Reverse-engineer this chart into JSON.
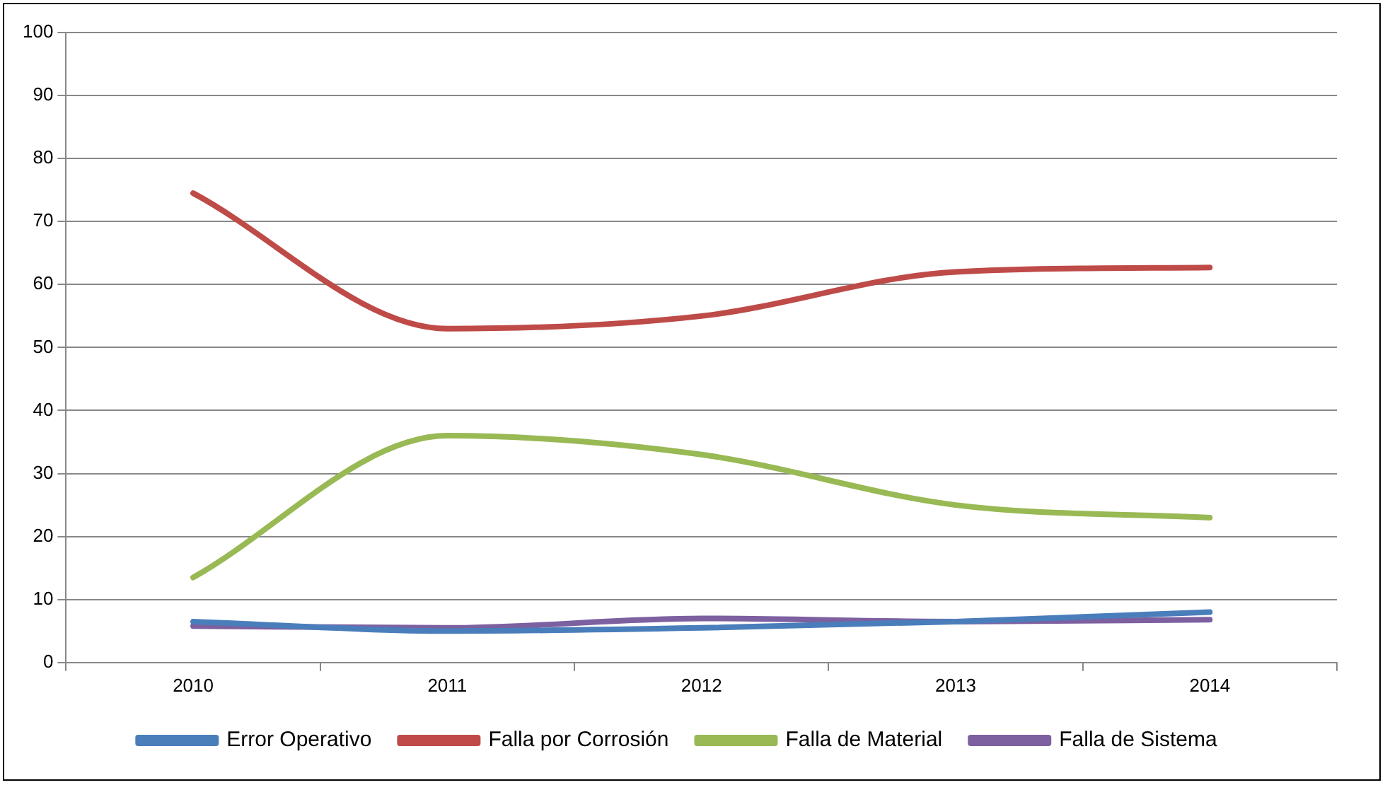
{
  "chart_data": {
    "type": "line",
    "categories": [
      "2010",
      "2011",
      "2012",
      "2013",
      "2014"
    ],
    "series": [
      {
        "name": "Error Operativo",
        "color": "#4a7ebb",
        "values": [
          6.5,
          5,
          5.5,
          6.5,
          8
        ]
      },
      {
        "name": "Falla por Corrosión",
        "color": "#be4b48",
        "values": [
          74.5,
          53,
          55,
          62,
          62.7
        ]
      },
      {
        "name": "Falla de Material",
        "color": "#98b954",
        "values": [
          13.5,
          36,
          33,
          25,
          23
        ]
      },
      {
        "name": "Falla de Sistema",
        "color": "#7d60a0",
        "values": [
          5.8,
          5.5,
          7,
          6.5,
          6.8
        ]
      }
    ],
    "ylim": [
      0,
      100
    ],
    "yticks": [
      0,
      10,
      20,
      30,
      40,
      50,
      60,
      70,
      80,
      90,
      100
    ],
    "grid": "y",
    "legend": "bottom",
    "marker": "none",
    "line_style": "solid"
  }
}
